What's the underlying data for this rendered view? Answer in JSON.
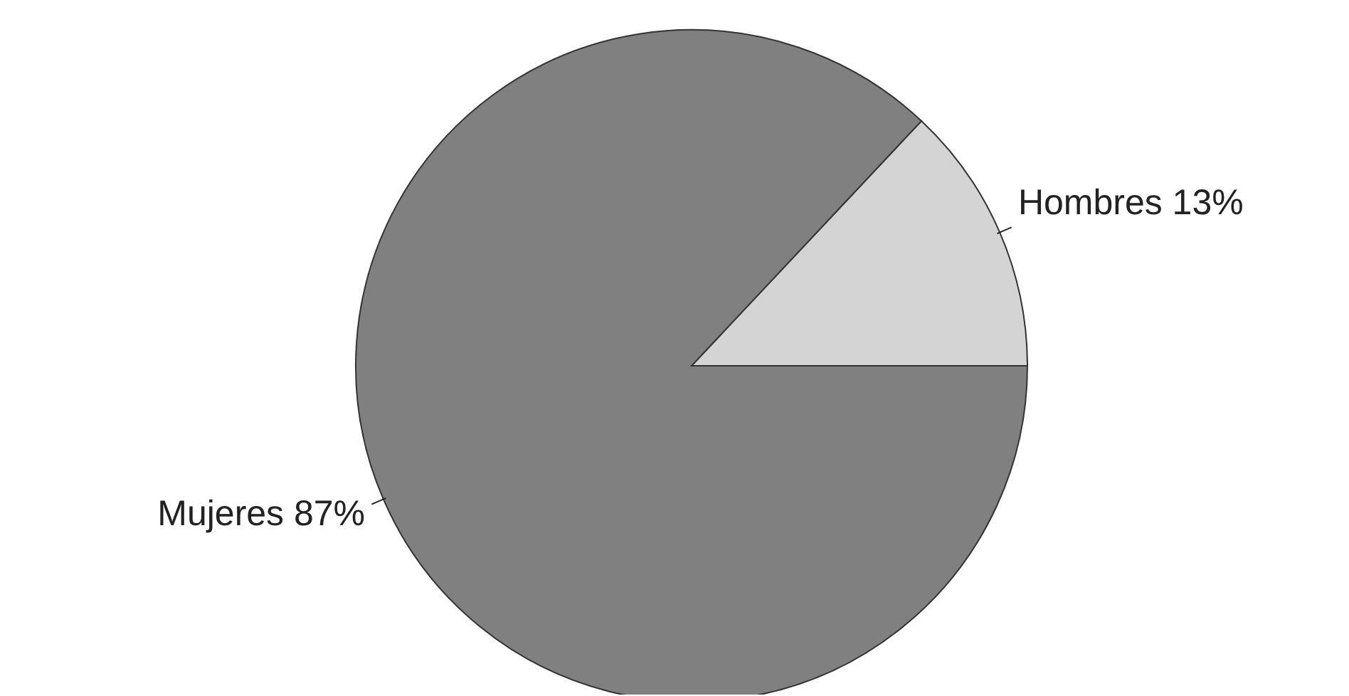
{
  "chart_data": {
    "type": "pie",
    "categories": [
      "Hombres",
      "Mujeres"
    ],
    "values": [
      13,
      87
    ],
    "colors": [
      "#d4d4d4",
      "#808080"
    ],
    "value_labels": [
      "13%",
      "87%"
    ],
    "legend": false
  }
}
